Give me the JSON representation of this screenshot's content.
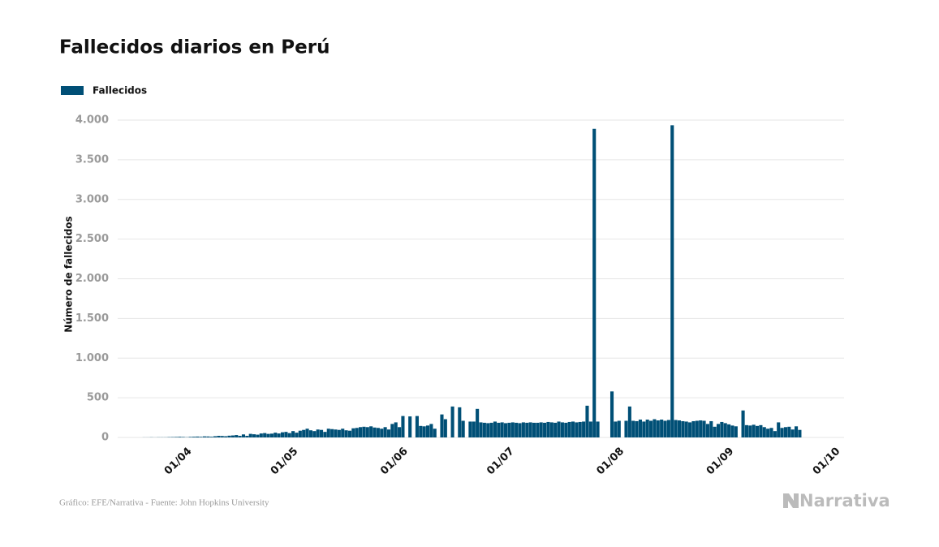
{
  "chart_data": {
    "type": "bar",
    "title": "Fallecidos diarios en Perú",
    "y_label": "Número de fallecidos",
    "source": "Gráfico: EFE/Narrativa - Fuente: John Hopkins University",
    "brand": "Narrativa",
    "legend": "top-left",
    "grid": true,
    "categories": [
      null,
      null,
      null,
      null,
      null,
      null,
      null,
      null,
      null,
      null,
      null,
      null,
      null,
      null,
      null,
      null,
      null,
      null,
      null,
      "01/04",
      null,
      null,
      null,
      null,
      null,
      null,
      null,
      null,
      null,
      null,
      null,
      null,
      null,
      null,
      null,
      null,
      null,
      null,
      null,
      null,
      null,
      null,
      null,
      null,
      null,
      null,
      null,
      null,
      null,
      "01/05",
      null,
      null,
      null,
      null,
      null,
      null,
      null,
      null,
      null,
      null,
      null,
      null,
      null,
      null,
      null,
      null,
      null,
      null,
      null,
      null,
      null,
      null,
      null,
      null,
      null,
      null,
      null,
      null,
      null,
      null,
      "01/06",
      null,
      null,
      null,
      null,
      null,
      null,
      null,
      null,
      null,
      null,
      null,
      null,
      null,
      null,
      null,
      null,
      null,
      null,
      null,
      null,
      null,
      null,
      null,
      null,
      null,
      null,
      null,
      null,
      null,
      "01/07",
      null,
      null,
      null,
      null,
      null,
      null,
      null,
      null,
      null,
      null,
      null,
      null,
      null,
      null,
      null,
      null,
      null,
      null,
      null,
      null,
      null,
      null,
      null,
      null,
      null,
      null,
      null,
      null,
      null,
      null,
      "01/08",
      null,
      null,
      null,
      null,
      null,
      null,
      null,
      null,
      null,
      null,
      null,
      null,
      null,
      null,
      null,
      null,
      null,
      null,
      null,
      null,
      null,
      null,
      null,
      null,
      null,
      null,
      null,
      null,
      null,
      null,
      "01/09",
      null,
      null,
      null,
      null,
      null,
      null,
      null,
      null,
      null,
      null,
      null,
      null,
      null,
      null,
      null,
      null,
      null,
      null,
      null,
      null,
      null,
      null,
      null,
      null,
      null,
      null,
      null,
      null,
      null,
      "01/10",
      null,
      null
    ],
    "series": [
      {
        "name": "Fallecidos",
        "color": "#004f76",
        "values": [
          null,
          null,
          null,
          null,
          null,
          null,
          null,
          1,
          1,
          2,
          1,
          2,
          2,
          2,
          4,
          5,
          6,
          8,
          6,
          3,
          7,
          9,
          11,
          8,
          13,
          12,
          9,
          15,
          20,
          18,
          15,
          22,
          25,
          30,
          20,
          38,
          20,
          45,
          40,
          35,
          50,
          55,
          45,
          48,
          60,
          50,
          65,
          70,
          55,
          80,
          60,
          85,
          95,
          110,
          90,
          80,
          100,
          95,
          70,
          110,
          105,
          100,
          95,
          110,
          90,
          85,
          115,
          120,
          130,
          135,
          130,
          140,
          125,
          120,
          110,
          130,
          100,
          170,
          190,
          130,
          270,
          null,
          265,
          null,
          270,
          145,
          140,
          150,
          170,
          110,
          null,
          290,
          230,
          null,
          390,
          null,
          380,
          210,
          null,
          200,
          200,
          360,
          190,
          185,
          180,
          185,
          200,
          185,
          190,
          180,
          185,
          190,
          185,
          180,
          190,
          185,
          190,
          185,
          185,
          190,
          185,
          195,
          190,
          185,
          200,
          190,
          185,
          195,
          200,
          190,
          195,
          200,
          400,
          200,
          3890,
          200,
          null,
          null,
          null,
          580,
          200,
          210,
          null,
          210,
          390,
          210,
          205,
          225,
          200,
          225,
          210,
          230,
          215,
          225,
          210,
          220,
          3935,
          220,
          215,
          205,
          200,
          190,
          205,
          210,
          215,
          210,
          170,
          205,
          135,
          170,
          195,
          180,
          165,
          150,
          140,
          null,
          340,
          155,
          150,
          160,
          145,
          155,
          130,
          110,
          120,
          80,
          190,
          120,
          130,
          135,
          100,
          140,
          95,
          null,
          null,
          null,
          null,
          null,
          null,
          null,
          null,
          null,
          null,
          null,
          null
        ]
      }
    ],
    "ylim": [
      0,
      4000
    ],
    "yticks": [
      0,
      500,
      {
        "value": 1000,
        "label": "1.000"
      },
      {
        "value": 1500,
        "label": "1.500"
      },
      {
        "value": 2000,
        "label": "2.000"
      },
      {
        "value": 2500,
        "label": "2.500"
      },
      {
        "value": 3000,
        "label": "3.000"
      },
      {
        "value": 3500,
        "label": "3.500"
      },
      {
        "value": 4000,
        "label": "4.000"
      }
    ]
  }
}
